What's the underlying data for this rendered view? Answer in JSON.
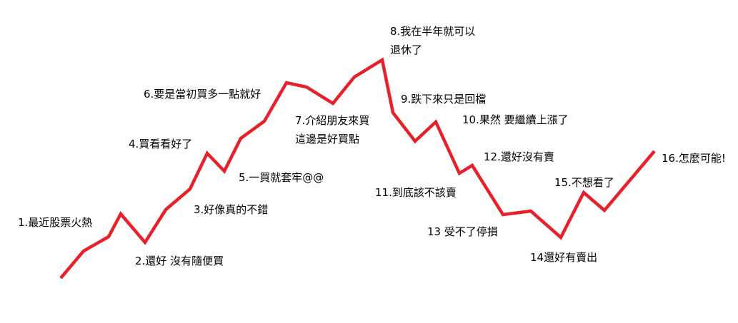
{
  "line_color": "#e8202a",
  "background": "#ffffff",
  "annotations": [
    {
      "id": "l1",
      "lines": [
        "1.最近股票火熱"
      ]
    },
    {
      "id": "l2",
      "lines": [
        "2.還好 沒有隨便買"
      ]
    },
    {
      "id": "l3",
      "lines": [
        "3.好像真的不錯"
      ]
    },
    {
      "id": "l4",
      "lines": [
        "4.買看看好了"
      ]
    },
    {
      "id": "l5",
      "lines": [
        "5.一買就套牢@@"
      ]
    },
    {
      "id": "l6",
      "lines": [
        "6.要是當初買多一點就好"
      ]
    },
    {
      "id": "l7",
      "lines": [
        "7.介紹朋友來買",
        "這邊是好買點"
      ]
    },
    {
      "id": "l8",
      "lines": [
        "8.我在半年就可以",
        "退休了"
      ]
    },
    {
      "id": "l9",
      "lines": [
        "9.跌下來只是回檔"
      ]
    },
    {
      "id": "l10",
      "lines": [
        "10.果然 要繼續上漲了"
      ]
    },
    {
      "id": "l11",
      "lines": [
        "11.到底該不該賣"
      ]
    },
    {
      "id": "l12",
      "lines": [
        "12.還好沒有賣"
      ]
    },
    {
      "id": "l13",
      "lines": [
        "13 受不了停損"
      ]
    },
    {
      "id": "l14",
      "lines": [
        "14還好有賣出"
      ]
    },
    {
      "id": "l15",
      "lines": [
        "15.不想看了"
      ]
    },
    {
      "id": "l16",
      "lines": [
        "16.怎麼可能!"
      ]
    }
  ]
}
